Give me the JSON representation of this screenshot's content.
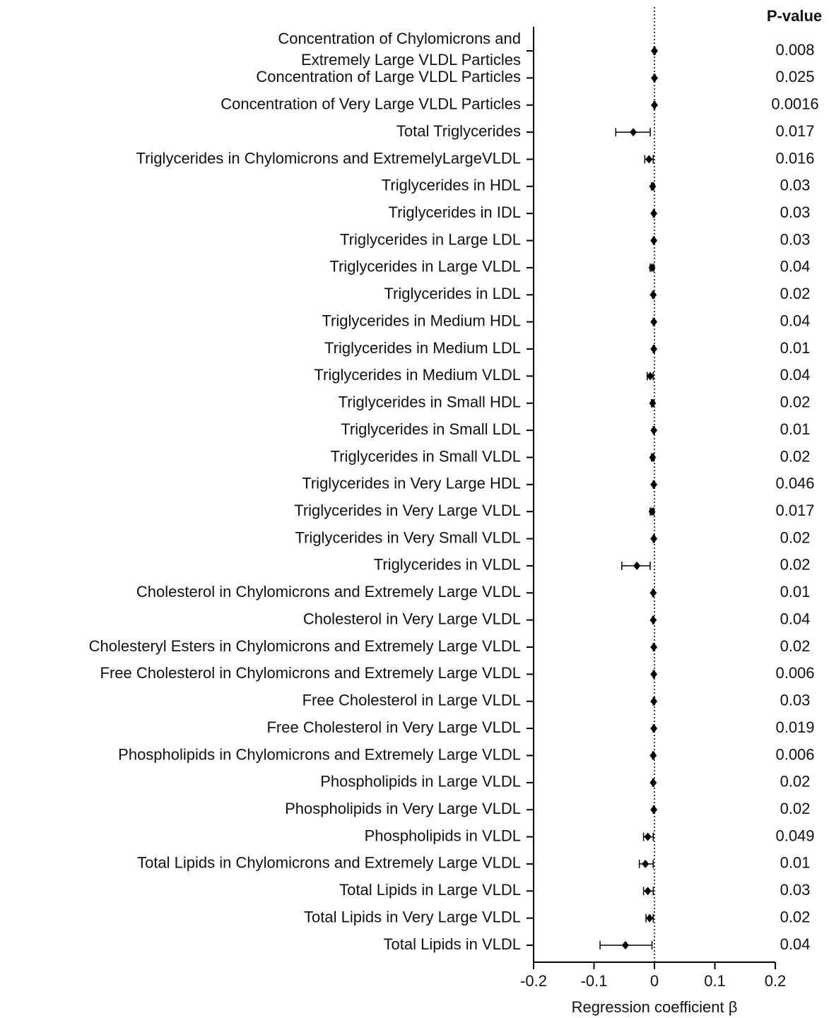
{
  "chart_data": {
    "type": "forest",
    "xlabel": "Regression coefficient β",
    "p_header": "P-value",
    "categories": [
      "Concentration of Chylomicrons and\nExtremely Large VLDL Particles",
      "Concentration of Large VLDL Particles",
      "Concentration of Very Large VLDL Particles",
      "Total Triglycerides",
      "Triglycerides in Chylomicrons and ExtremelyLargeVLDL",
      "Triglycerides in HDL",
      "Triglycerides in IDL",
      "Triglycerides in Large LDL",
      "Triglycerides in Large VLDL",
      "Triglycerides in LDL",
      "Triglycerides in Medium HDL",
      "Triglycerides in Medium LDL",
      "Triglycerides in Medium VLDL",
      "Triglycerides in Small HDL",
      "Triglycerides in Small LDL",
      "Triglycerides in Small VLDL",
      "Triglycerides in Very Large HDL",
      "Triglycerides in Very Large VLDL",
      "Triglycerides in Very Small VLDL",
      "Triglycerides in VLDL",
      "Cholesterol in Chylomicrons and Extremely Large VLDL",
      "Cholesterol in Very Large VLDL",
      "Cholesteryl Esters in Chylomicrons and Extremely Large VLDL",
      "Free Cholesterol in Chylomicrons and Extremely Large VLDL",
      "Free Cholesterol in Large VLDL",
      "Free Cholesterol in Very Large VLDL",
      "Phospholipids in Chylomicrons and Extremely Large VLDL",
      "Phospholipids in Large VLDL",
      "Phospholipids in Very Large VLDL",
      "Phospholipids in VLDL",
      "Total Lipids in Chylomicrons and Extremely Large VLDL",
      "Total Lipids in Large VLDL",
      "Total Lipids in Very Large VLDL",
      "Total Lipids in VLDL"
    ],
    "values": [
      0,
      0,
      0,
      -0.035,
      -0.009,
      -0.003,
      -0.001,
      -0.001,
      -0.004,
      -0.002,
      -0.001,
      -0.001,
      -0.007,
      -0.003,
      -0.001,
      -0.003,
      -0.001,
      -0.004,
      -0.001,
      -0.029,
      -0.002,
      -0.002,
      -0.001,
      -0.001,
      -0.001,
      -0.001,
      -0.002,
      -0.002,
      -0.001,
      -0.011,
      -0.015,
      -0.011,
      -0.008,
      -0.048
    ],
    "lower": [
      -0.001,
      -0.001,
      -0.001,
      -0.064,
      -0.016,
      -0.005,
      -0.002,
      -0.002,
      -0.007,
      -0.003,
      -0.002,
      -0.002,
      -0.012,
      -0.005,
      -0.002,
      -0.005,
      -0.002,
      -0.007,
      -0.002,
      -0.054,
      -0.003,
      -0.003,
      -0.002,
      -0.002,
      -0.002,
      -0.002,
      -0.003,
      -0.003,
      -0.002,
      -0.018,
      -0.025,
      -0.018,
      -0.014,
      -0.09
    ],
    "upper": [
      0.001,
      0.001,
      0.001,
      -0.007,
      -0.002,
      -0.001,
      0,
      0,
      -0.001,
      -0.001,
      0,
      0,
      -0.002,
      -0.001,
      0,
      -0.001,
      0,
      -0.001,
      0,
      -0.007,
      -0.001,
      -0.001,
      0,
      0,
      0,
      0,
      -0.001,
      -0.001,
      0,
      -0.002,
      -0.002,
      -0.002,
      -0.002,
      -0.004
    ],
    "p_values": [
      0.008,
      0.025,
      0.0016,
      0.017,
      0.016,
      0.03,
      0.03,
      0.03,
      0.04,
      0.02,
      0.04,
      0.01,
      0.04,
      0.02,
      0.01,
      0.02,
      0.046,
      0.017,
      0.02,
      0.02,
      0.01,
      0.04,
      0.02,
      0.006,
      0.03,
      0.019,
      0.006,
      0.02,
      0.02,
      0.049,
      0.01,
      0.03,
      0.02,
      0.04
    ],
    "xlim": [
      -0.2,
      0.2
    ],
    "xticks": [
      -0.2,
      -0.1,
      0,
      0.1,
      0.2
    ],
    "reference_line": 0,
    "color": "#000000"
  }
}
